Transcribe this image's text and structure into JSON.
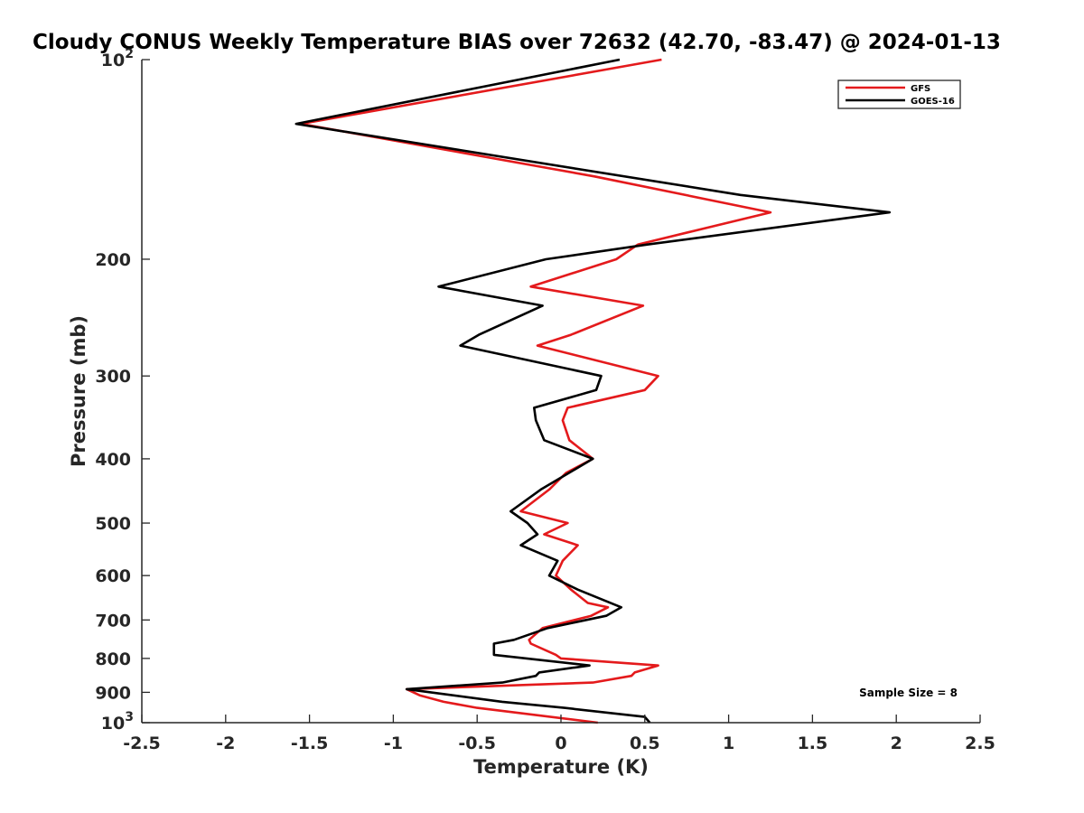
{
  "chart_data": {
    "type": "line",
    "title": "Cloudy CONUS Weekly Temperature BIAS over 72632 (42.70, -83.47) @ 2024-01-13",
    "xlabel": "Temperature (K)",
    "ylabel": "Pressure (mb)",
    "xlim": [
      -2.5,
      2.5
    ],
    "ylim": [
      1000,
      100
    ],
    "y_scale": "log",
    "x_ticks": [
      -2.5,
      -2,
      -1.5,
      -1,
      -0.5,
      0,
      0.5,
      1,
      1.5,
      2,
      2.5
    ],
    "x_tick_labels": [
      "-2.5",
      "-2",
      "-1.5",
      "-1",
      "-0.5",
      "0",
      "0.5",
      "1",
      "1.5",
      "2",
      "2.5"
    ],
    "y_ticks": [
      {
        "value": 100,
        "base": "10",
        "exp": "2"
      },
      {
        "value": 200,
        "base": "200",
        "exp": ""
      },
      {
        "value": 300,
        "base": "300",
        "exp": ""
      },
      {
        "value": 400,
        "base": "400",
        "exp": ""
      },
      {
        "value": 500,
        "base": "500",
        "exp": ""
      },
      {
        "value": 600,
        "base": "600",
        "exp": ""
      },
      {
        "value": 700,
        "base": "700",
        "exp": ""
      },
      {
        "value": 800,
        "base": "800",
        "exp": ""
      },
      {
        "value": 900,
        "base": "900",
        "exp": ""
      },
      {
        "value": 1000,
        "base": "10",
        "exp": "3"
      }
    ],
    "grid": false,
    "legend_position": "top-right",
    "annotation": "Sample Size = 8",
    "series": [
      {
        "name": "GFS",
        "color": "#e41a1c",
        "points": [
          [
            0.6,
            100
          ],
          [
            -1.55,
            125
          ],
          [
            0.2,
            150
          ],
          [
            1.25,
            170
          ],
          [
            0.46,
            190
          ],
          [
            0.33,
            200
          ],
          [
            -0.18,
            220
          ],
          [
            0.49,
            235
          ],
          [
            0.06,
            260
          ],
          [
            -0.14,
            270
          ],
          [
            0.58,
            300
          ],
          [
            0.5,
            315
          ],
          [
            0.04,
            335
          ],
          [
            0.01,
            350
          ],
          [
            0.05,
            375
          ],
          [
            0.19,
            400
          ],
          [
            0.03,
            420
          ],
          [
            -0.07,
            445
          ],
          [
            -0.24,
            480
          ],
          [
            0.04,
            500
          ],
          [
            -0.1,
            520
          ],
          [
            0.1,
            540
          ],
          [
            0.01,
            570
          ],
          [
            -0.03,
            600
          ],
          [
            0.06,
            630
          ],
          [
            0.16,
            660
          ],
          [
            0.28,
            670
          ],
          [
            0.18,
            690
          ],
          [
            -0.11,
            720
          ],
          [
            -0.19,
            750
          ],
          [
            -0.18,
            760
          ],
          [
            -0.03,
            790
          ],
          [
            0.0,
            800
          ],
          [
            0.58,
            820
          ],
          [
            0.44,
            840
          ],
          [
            0.42,
            850
          ],
          [
            0.19,
            870
          ],
          [
            -0.92,
            890
          ],
          [
            -0.84,
            910
          ],
          [
            -0.7,
            930
          ],
          [
            -0.5,
            950
          ],
          [
            0.22,
            1000
          ]
        ]
      },
      {
        "name": "GOES-16",
        "color": "#000000",
        "points": [
          [
            0.35,
            100
          ],
          [
            -1.58,
            125
          ],
          [
            1.07,
            160
          ],
          [
            1.96,
            170
          ],
          [
            0.52,
            190
          ],
          [
            -0.09,
            200
          ],
          [
            -0.73,
            220
          ],
          [
            -0.11,
            235
          ],
          [
            -0.49,
            260
          ],
          [
            -0.6,
            270
          ],
          [
            0.24,
            300
          ],
          [
            0.21,
            315
          ],
          [
            -0.16,
            335
          ],
          [
            -0.15,
            350
          ],
          [
            -0.1,
            375
          ],
          [
            0.19,
            400
          ],
          [
            -0.12,
            445
          ],
          [
            -0.3,
            480
          ],
          [
            -0.2,
            500
          ],
          [
            -0.14,
            520
          ],
          [
            -0.24,
            540
          ],
          [
            -0.02,
            570
          ],
          [
            -0.07,
            600
          ],
          [
            0.1,
            630
          ],
          [
            0.36,
            670
          ],
          [
            0.27,
            690
          ],
          [
            -0.08,
            720
          ],
          [
            -0.28,
            750
          ],
          [
            -0.4,
            760
          ],
          [
            -0.4,
            790
          ],
          [
            0.17,
            820
          ],
          [
            -0.13,
            840
          ],
          [
            -0.15,
            850
          ],
          [
            -0.35,
            870
          ],
          [
            -0.92,
            890
          ],
          [
            -0.35,
            930
          ],
          [
            0.02,
            950
          ],
          [
            0.5,
            980
          ],
          [
            0.53,
            1000
          ]
        ]
      }
    ]
  }
}
